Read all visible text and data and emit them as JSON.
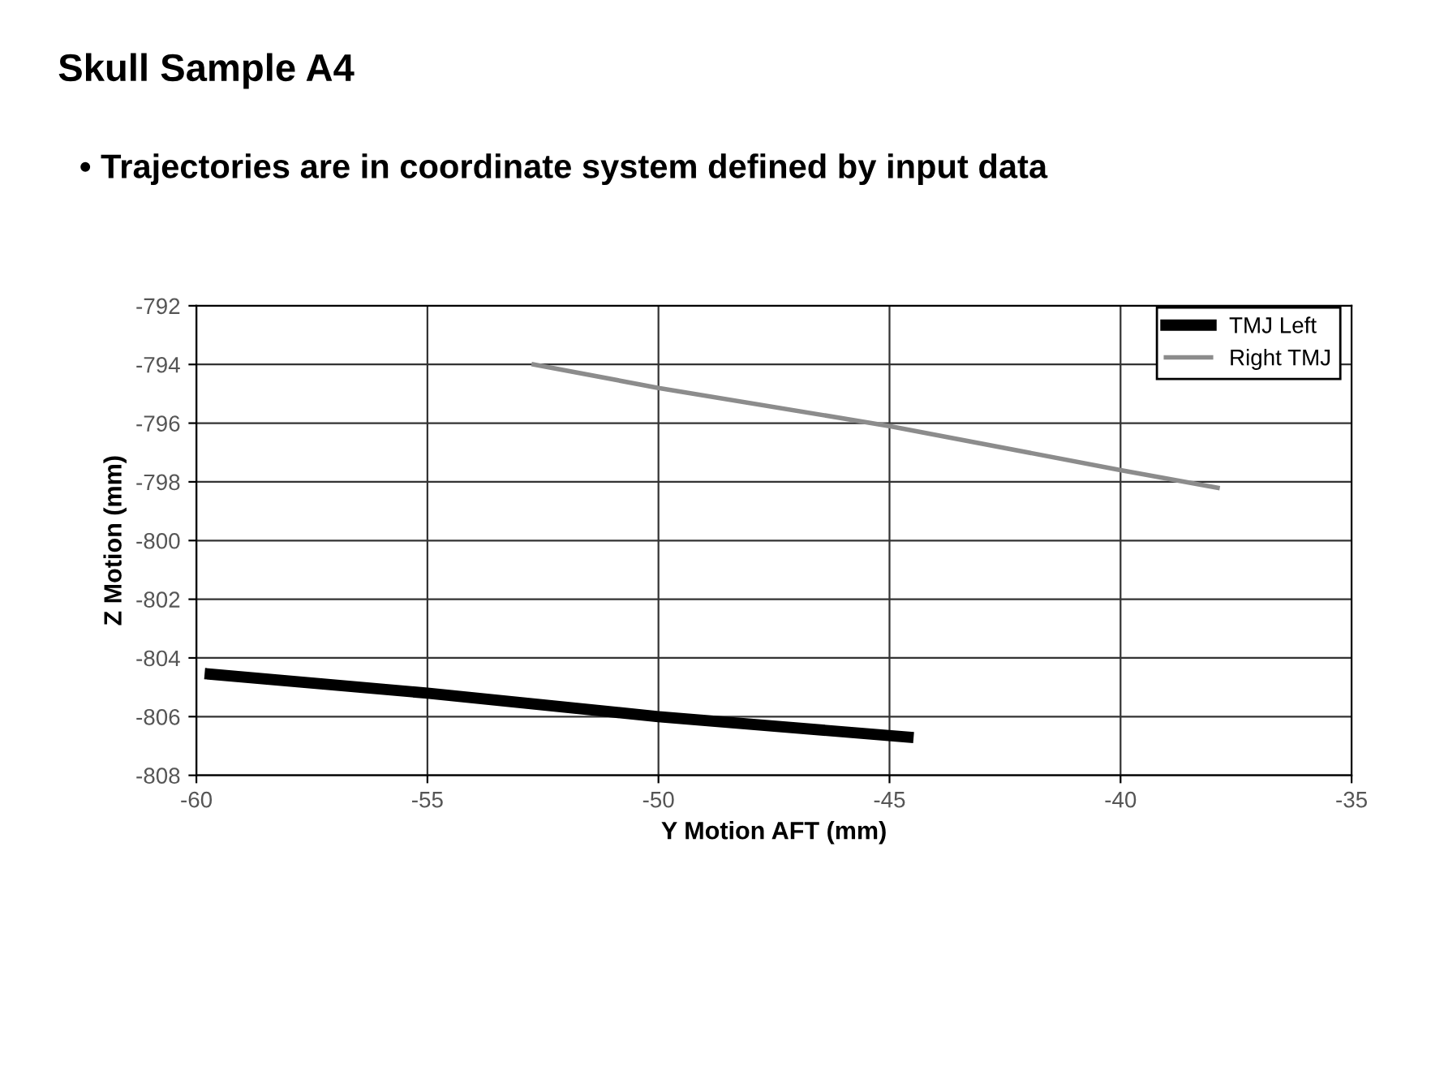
{
  "chart_data": {
    "type": "line",
    "title": "Skull Sample A4",
    "subtitle": "• Trajectories are in coordinate system defined by input data",
    "xlabel": "Y Motion AFT (mm)",
    "ylabel": "Z Motion (mm)",
    "series": [
      {
        "name": "TMJ Left",
        "color": "#000000",
        "x": [
          -59.7,
          -55,
          -50,
          -44.6
        ],
        "values": [
          -804.55,
          -805.2,
          -806.0,
          -806.7
        ]
      },
      {
        "name": "Right TMJ",
        "color": "#8c8c8c",
        "x": [
          -52.7,
          -50,
          -45,
          -40,
          -37.9
        ],
        "values": [
          -794.0,
          -794.8,
          -796.1,
          -797.6,
          -798.2
        ]
      }
    ],
    "xlim": [
      -60,
      -35
    ],
    "xticks": [
      -60,
      -55,
      -50,
      -45,
      -40,
      -35
    ],
    "ylim": [
      -808,
      -792
    ],
    "yticks": [
      -808,
      -806,
      -804,
      -802,
      -800,
      -798,
      -796,
      -794,
      -792
    ],
    "grid": true,
    "legend": "top right",
    "marker": "none",
    "line_style": "solid"
  }
}
